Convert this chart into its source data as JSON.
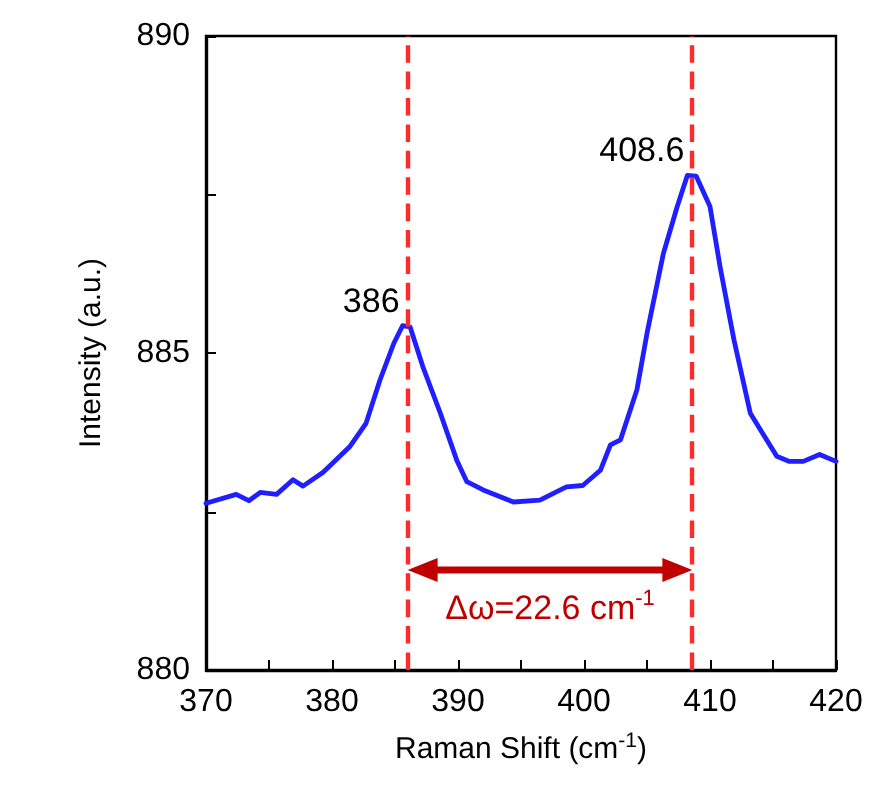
{
  "chart_data": {
    "type": "line",
    "xlabel": "Raman Shift (cm$^{-1}$)",
    "ylabel": "Intensity (a.u.)",
    "x": [
      370.0,
      372.4,
      373.4,
      374.3,
      375.6,
      376.9,
      377.7,
      379.3,
      381.4,
      382.7,
      383.8,
      384.9,
      385.6,
      386.2,
      387.2,
      388.6,
      389.9,
      390.7,
      392.0,
      394.4,
      396.5,
      398.6,
      399.9,
      401.3,
      402.1,
      402.9,
      404.2,
      405.0,
      406.3,
      407.4,
      408.2,
      408.9,
      410.0,
      410.8,
      411.9,
      413.2,
      414.0,
      415.3,
      416.3,
      417.4,
      418.7,
      420.0
    ],
    "series": [
      {
        "color": "#1f1fff",
        "values": [
          882.63,
          882.77,
          882.67,
          882.8,
          882.77,
          883.0,
          882.9,
          883.12,
          883.52,
          883.89,
          884.57,
          885.15,
          885.43,
          885.41,
          884.79,
          884.05,
          883.31,
          882.97,
          882.84,
          882.65,
          882.68,
          882.89,
          882.91,
          883.15,
          883.55,
          883.63,
          884.42,
          885.31,
          886.57,
          887.31,
          887.8,
          887.79,
          887.31,
          886.36,
          885.21,
          884.05,
          883.79,
          883.37,
          883.29,
          883.29,
          883.4,
          883.29
        ]
      }
    ],
    "xlim": [
      370,
      420
    ],
    "xticks": [
      370,
      {
        "value": 375,
        "label": null
      },
      380,
      {
        "value": 385,
        "label": null
      },
      390,
      {
        "value": 395,
        "label": null
      },
      400,
      {
        "value": 405,
        "label": null
      },
      410,
      {
        "value": 415,
        "label": null
      },
      420
    ],
    "ylim": [
      880,
      890
    ],
    "yticks": [
      880,
      {
        "value": 882.5,
        "label": null
      },
      885,
      {
        "value": 887.5,
        "label": null
      },
      890
    ],
    "ref_lines": [
      {
        "axis": "x",
        "value": 386,
        "color": "#ff2a2a",
        "line_style": "dashed"
      },
      {
        "axis": "x",
        "value": 408.6,
        "color": "#ff2a2a",
        "line_style": "dashed"
      }
    ],
    "annotations": [
      {
        "text": "386",
        "x": 386,
        "y": 885.43
      },
      {
        "text": "408.6",
        "x": 408.6,
        "y": 887.8
      },
      "Δω=22.6 cm$^{-1}$"
    ],
    "grid": false,
    "marker": "none",
    "line_style": "solid"
  }
}
